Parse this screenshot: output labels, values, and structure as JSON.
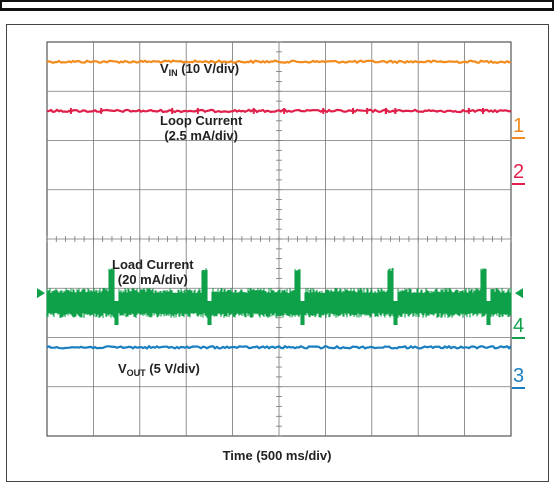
{
  "chart_data": {
    "type": "line",
    "xlabel": "Time (500 ms/div)",
    "grid": true,
    "divisions": {
      "x": 10,
      "y": 8
    },
    "series": [
      {
        "name": "VIN (10 V/div)",
        "label_main": "V",
        "label_sub": "IN",
        "label_rest": " (10 V/div)",
        "color": "#f28c1e",
        "channel": "1",
        "level_div": 7.6
      },
      {
        "name": "Loop Current (2.5 mA/div)",
        "label_line1": "Loop Current",
        "label_line2": "(2.5 mA/div)",
        "color": "#e0204a",
        "channel": "2",
        "level_div": 6.6
      },
      {
        "name": "Load Current (20 mA/div)",
        "label_line1": "Load Current",
        "label_line2": "(20 mA/div)",
        "color": "#0fa04a",
        "channel": "4",
        "level_div": 2.7,
        "pulse_times_div": [
          1.4,
          3.4,
          5.4,
          7.4,
          9.4
        ],
        "pulse_height_div": 0.45
      },
      {
        "name": "VOUT (5 V/div)",
        "label_main": "V",
        "label_sub": "OUT",
        "label_rest": " (5 V/div)",
        "color": "#1a7fc0",
        "channel": "3",
        "level_div": 1.8
      }
    ]
  }
}
